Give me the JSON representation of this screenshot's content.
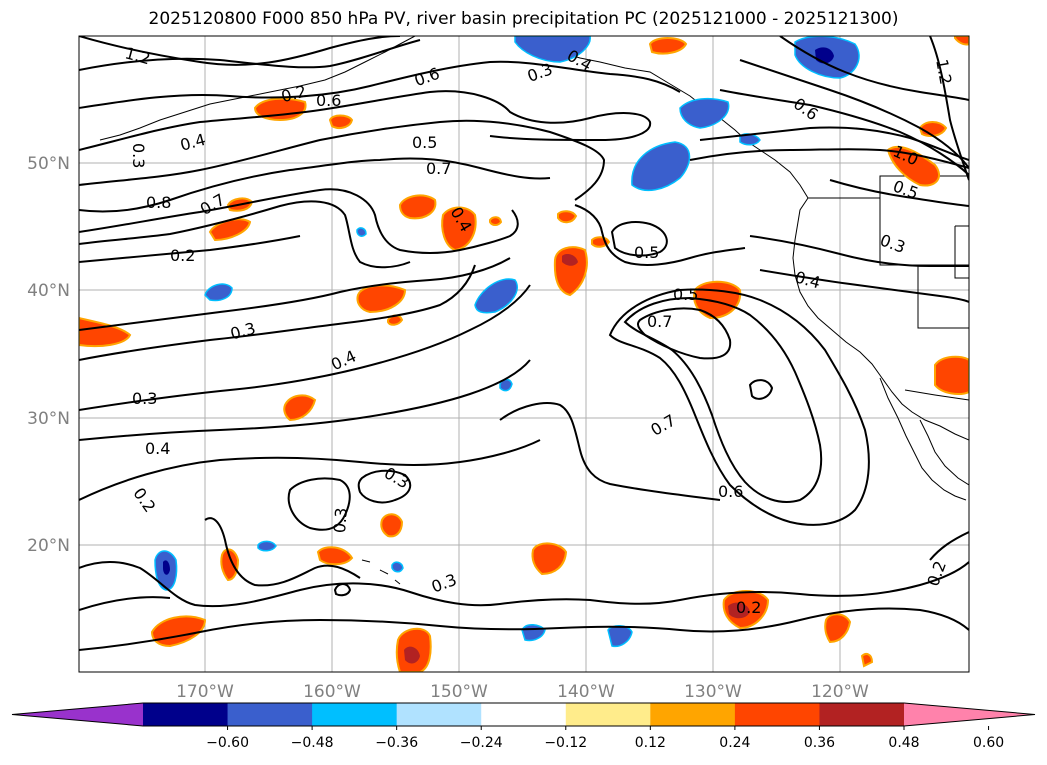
{
  "title": "2025120800 F000 850 hPa PV, river basin precipitation PC (2025121000 - 2025121300)",
  "lat_labels": [
    "50°N",
    "40°N",
    "30°N",
    "20°N"
  ],
  "lon_labels": [
    "170°W",
    "160°W",
    "150°W",
    "140°W",
    "130°W",
    "120°W"
  ],
  "colorbar": {
    "colors": [
      "#9932cc",
      "#00008b",
      "#3a5fcd",
      "#00bfff",
      "#b0e2ff",
      "#ffffff",
      "#ffec8b",
      "#ffa500",
      "#ff4500",
      "#b22222",
      "#ff82ab"
    ],
    "tick_labels": [
      "−0.60",
      "−0.48",
      "−0.36",
      "−0.24",
      "−0.12",
      "0.12",
      "0.24",
      "0.36",
      "0.48",
      "0.60"
    ]
  },
  "contour_labels": [
    "1.2",
    "0.6",
    "0.5",
    "0.7",
    "0.8",
    "0.2",
    "0.3",
    "0.4",
    "0.5",
    "0.7",
    "0.3",
    "0.4",
    "0.5",
    "0.7",
    "0.7",
    "0.6",
    "0.3",
    "0.4",
    "0.3",
    "0.2",
    "0.3",
    "0.3",
    "0.2",
    "0.3",
    "0.4",
    "0.6",
    "1.0",
    "0.5",
    "0.4",
    "0.2",
    "1.2",
    "0.3",
    "0.4",
    "0.2",
    "0.6"
  ]
}
